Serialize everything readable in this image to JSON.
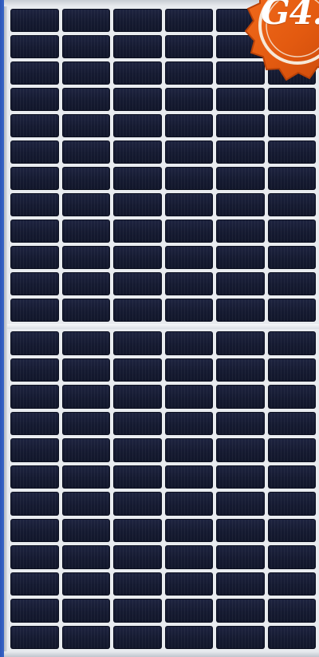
{
  "image": {
    "subject": "solar-panel",
    "badge": {
      "text": "G4.",
      "color": "#e35a10",
      "ring_color": "#f6e8d8"
    },
    "panel": {
      "cell_color": "#151a31",
      "grid_line_color": "#eef1f4",
      "frame_color": "#d7dbe1",
      "columns": 6,
      "rows_top": 12,
      "rows_bottom": 12
    }
  }
}
